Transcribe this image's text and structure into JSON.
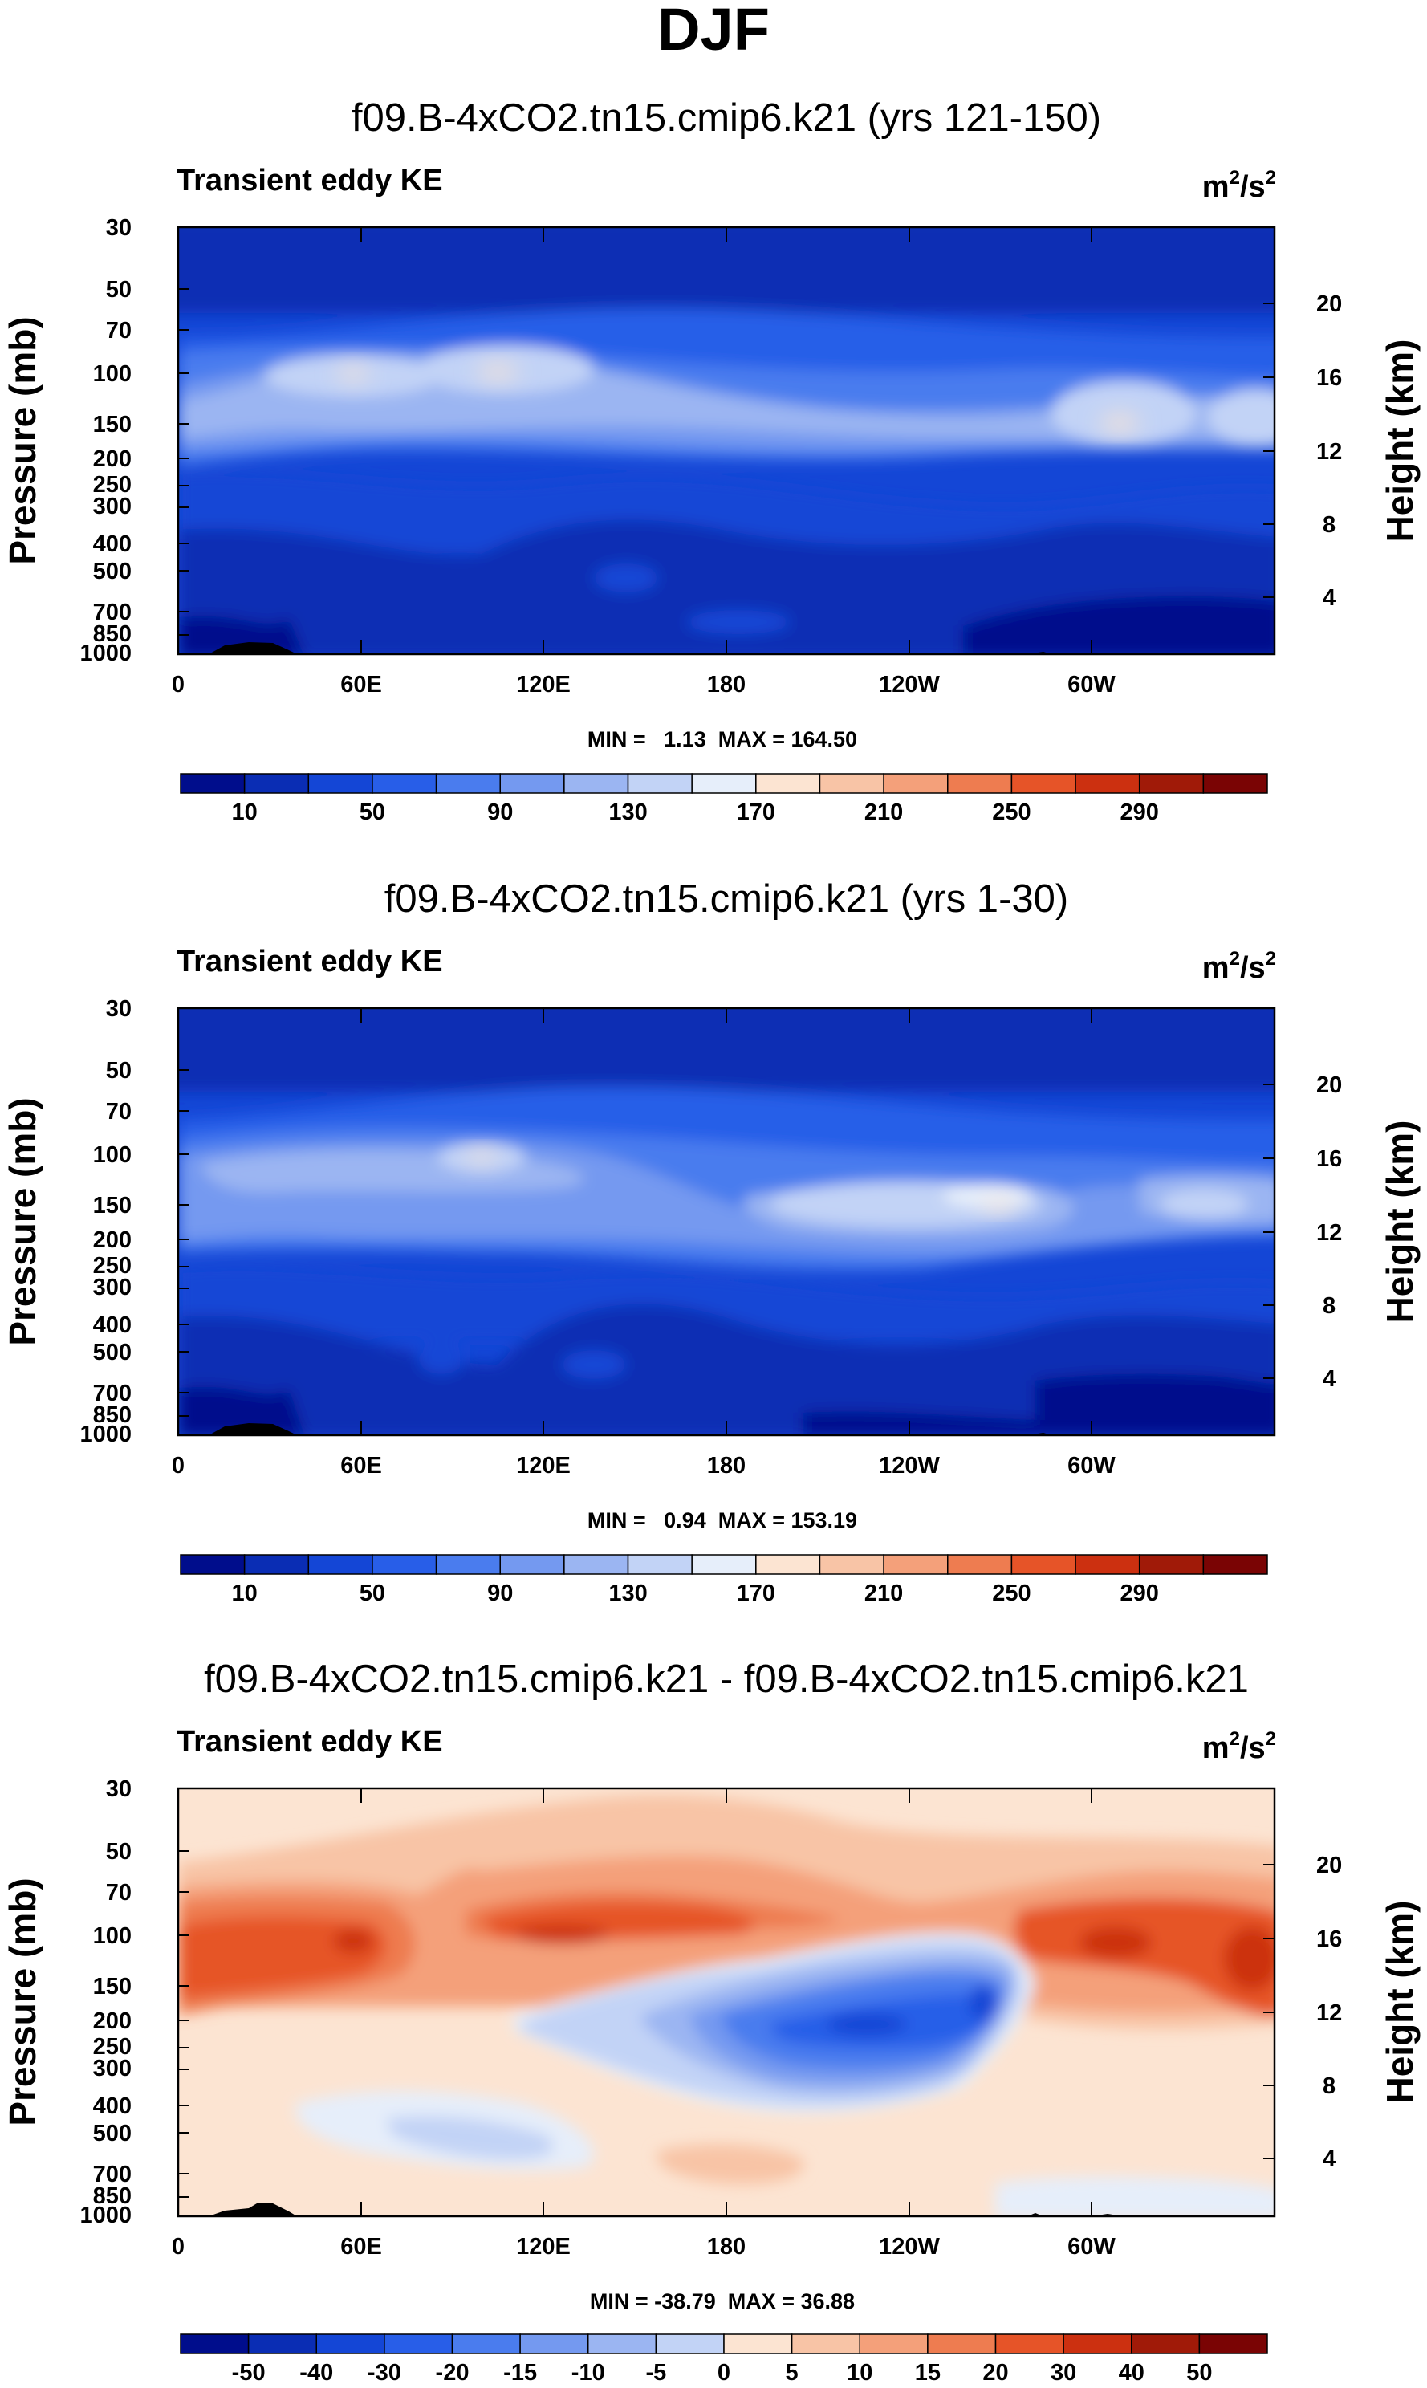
{
  "chart_data": {
    "type": "contour",
    "title": "DJF",
    "panels": [
      {
        "title": "f09.B-4xCO2.tn15.cmip6.k21 (yrs 121-150)",
        "variable": "Transient eddy KE",
        "units_base": "m",
        "units_exp": "2",
        "units_tail": "/s",
        "units_exp2": "2",
        "ylabel": "Pressure (mb)",
        "y2label": "Height (km)",
        "pressure_ticks": [
          "30",
          "50",
          "70",
          "100",
          "150",
          "200",
          "250",
          "300",
          "400",
          "500",
          "700",
          "850",
          "1000"
        ],
        "pressure_values": [
          30,
          50,
          70,
          100,
          150,
          200,
          250,
          300,
          400,
          500,
          700,
          850,
          1000
        ],
        "height_ticks": [
          "20",
          "16",
          "12",
          "8",
          "4"
        ],
        "height_values": [
          20,
          16,
          12,
          8,
          4
        ],
        "lon_ticks": [
          "0",
          "60E",
          "120E",
          "180",
          "120W",
          "60W"
        ],
        "lon_values": [
          0,
          60,
          120,
          180,
          240,
          300
        ],
        "xlim": [
          0,
          360
        ],
        "minmax_text": "MIN =   1.13  MAX = 164.50",
        "min": 1.13,
        "max": 164.5,
        "colorbar": {
          "labels": [
            "10",
            "50",
            "90",
            "130",
            "170",
            "210",
            "250",
            "290"
          ],
          "levels": [
            10,
            30,
            50,
            70,
            90,
            110,
            130,
            150,
            170,
            190,
            210,
            230,
            250,
            270,
            290
          ],
          "colors": [
            "#000d8c",
            "#0a2db4",
            "#1446d6",
            "#285ee8",
            "#4a7cee",
            "#7499f0",
            "#9bb5f2",
            "#c2d3f6",
            "#e6eefa",
            "#fce4d2",
            "#f8c4a6",
            "#f4a07a",
            "#ee7c50",
            "#e65428",
            "#cc3010",
            "#a01a08",
            "#7a0404"
          ]
        }
      },
      {
        "title": "f09.B-4xCO2.tn15.cmip6.k21 (yrs 1-30)",
        "variable": "Transient eddy KE",
        "units_base": "m",
        "units_exp": "2",
        "units_tail": "/s",
        "units_exp2": "2",
        "ylabel": "Pressure (mb)",
        "y2label": "Height (km)",
        "pressure_ticks": [
          "30",
          "50",
          "70",
          "100",
          "150",
          "200",
          "250",
          "300",
          "400",
          "500",
          "700",
          "850",
          "1000"
        ],
        "pressure_values": [
          30,
          50,
          70,
          100,
          150,
          200,
          250,
          300,
          400,
          500,
          700,
          850,
          1000
        ],
        "height_ticks": [
          "20",
          "16",
          "12",
          "8",
          "4"
        ],
        "height_values": [
          20,
          16,
          12,
          8,
          4
        ],
        "lon_ticks": [
          "0",
          "60E",
          "120E",
          "180",
          "120W",
          "60W"
        ],
        "lon_values": [
          0,
          60,
          120,
          180,
          240,
          300
        ],
        "xlim": [
          0,
          360
        ],
        "minmax_text": "MIN =   0.94  MAX = 153.19",
        "min": 0.94,
        "max": 153.19,
        "colorbar": {
          "labels": [
            "10",
            "50",
            "90",
            "130",
            "170",
            "210",
            "250",
            "290"
          ],
          "levels": [
            10,
            30,
            50,
            70,
            90,
            110,
            130,
            150,
            170,
            190,
            210,
            230,
            250,
            270,
            290
          ],
          "colors": [
            "#000d8c",
            "#0a2db4",
            "#1446d6",
            "#285ee8",
            "#4a7cee",
            "#7499f0",
            "#9bb5f2",
            "#c2d3f6",
            "#e6eefa",
            "#fce4d2",
            "#f8c4a6",
            "#f4a07a",
            "#ee7c50",
            "#e65428",
            "#cc3010",
            "#a01a08",
            "#7a0404"
          ]
        }
      },
      {
        "title": "f09.B-4xCO2.tn15.cmip6.k21 - f09.B-4xCO2.tn15.cmip6.k21",
        "variable": "Transient eddy KE",
        "units_base": "m",
        "units_exp": "2",
        "units_tail": "/s",
        "units_exp2": "2",
        "ylabel": "Pressure (mb)",
        "y2label": "Height (km)",
        "pressure_ticks": [
          "30",
          "50",
          "70",
          "100",
          "150",
          "200",
          "250",
          "300",
          "400",
          "500",
          "700",
          "850",
          "1000"
        ],
        "pressure_values": [
          30,
          50,
          70,
          100,
          150,
          200,
          250,
          300,
          400,
          500,
          700,
          850,
          1000
        ],
        "height_ticks": [
          "20",
          "16",
          "12",
          "8",
          "4"
        ],
        "height_values": [
          20,
          16,
          12,
          8,
          4
        ],
        "lon_ticks": [
          "0",
          "60E",
          "120E",
          "180",
          "120W",
          "60W"
        ],
        "lon_values": [
          0,
          60,
          120,
          180,
          240,
          300
        ],
        "xlim": [
          0,
          360
        ],
        "minmax_text": "MIN = -38.79  MAX = 36.88",
        "min": -38.79,
        "max": 36.88,
        "colorbar": {
          "labels": [
            "-50",
            "-40",
            "-30",
            "-20",
            "-15",
            "-10",
            "-5",
            "0",
            "5",
            "10",
            "15",
            "20",
            "30",
            "40",
            "50"
          ],
          "levels": [
            -50,
            -40,
            -30,
            -20,
            -15,
            -10,
            -5,
            0,
            5,
            10,
            15,
            20,
            30,
            40,
            50
          ],
          "colors": [
            "#000d8c",
            "#0a2db4",
            "#1446d6",
            "#285ee8",
            "#4a7cee",
            "#7499f0",
            "#9bb5f2",
            "#c2d3f6",
            "#fce4d2",
            "#f8c4a6",
            "#f4a07a",
            "#ee7c50",
            "#e65428",
            "#cc3010",
            "#a01a08",
            "#7a0404"
          ]
        }
      }
    ]
  }
}
